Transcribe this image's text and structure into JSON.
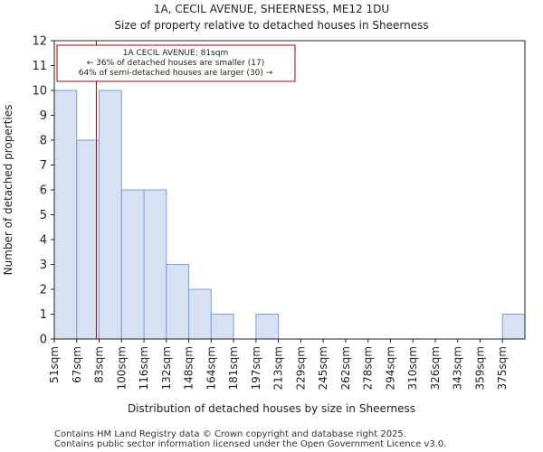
{
  "chart_data": {
    "type": "bar",
    "title": "1A, CECIL AVENUE, SHEERNESS, ME12 1DU",
    "subtitle": "Size of property relative to detached houses in Sheerness",
    "xlabel": "Distribution of detached houses by size in Sheerness",
    "ylabel": "Number of detached properties",
    "categories": [
      "51sqm",
      "67sqm",
      "83sqm",
      "100sqm",
      "116sqm",
      "132sqm",
      "148sqm",
      "164sqm",
      "181sqm",
      "197sqm",
      "213sqm",
      "229sqm",
      "245sqm",
      "262sqm",
      "278sqm",
      "294sqm",
      "310sqm",
      "326sqm",
      "343sqm",
      "359sqm",
      "375sqm"
    ],
    "values": [
      10,
      8,
      10,
      6,
      6,
      3,
      2,
      1,
      0,
      1,
      0,
      0,
      0,
      0,
      0,
      0,
      0,
      0,
      0,
      0,
      1
    ],
    "ylim": [
      0,
      12
    ],
    "yticks": [
      0,
      1,
      2,
      3,
      4,
      5,
      6,
      7,
      8,
      9,
      10,
      11,
      12
    ],
    "bar_color": "#d7e1f4",
    "bar_edge_color": "#7a9fd6",
    "marker": {
      "value_sqm": 81,
      "color": "#aa0000",
      "line1": "1A CECIL AVENUE: 81sqm",
      "line2": "← 36% of detached houses are smaller (17)",
      "line3": "64% of semi-detached houses are larger (30) →"
    }
  },
  "footer": {
    "line1": "Contains HM Land Registry data © Crown copyright and database right 2025.",
    "line2": "Contains public sector information licensed under the Open Government Licence v3.0."
  }
}
